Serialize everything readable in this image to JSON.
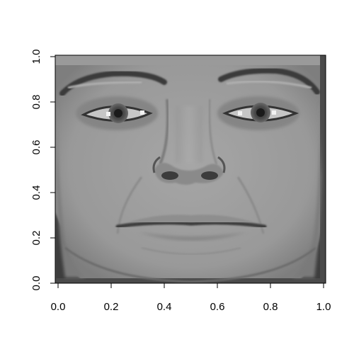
{
  "chart_data": {
    "type": "heatmap",
    "title": "",
    "xlabel": "",
    "ylabel": "",
    "xlim": [
      0,
      1
    ],
    "ylim": [
      0,
      1
    ],
    "grid": false,
    "colormap": "grayscale",
    "x_ticks": [
      "0.0",
      "0.2",
      "0.4",
      "0.6",
      "0.8",
      "1.0"
    ],
    "y_ticks": [
      "0.0",
      "0.2",
      "0.4",
      "0.6",
      "0.8",
      "1.0"
    ],
    "x_tick_values": [
      0.0,
      0.2,
      0.4,
      0.6,
      0.8,
      1.0
    ],
    "y_tick_values": [
      0.0,
      0.2,
      0.4,
      0.6,
      0.8,
      1.0
    ],
    "image_content": "grayscale face image",
    "colors": {
      "face_base": "#9c9c9c",
      "background": "#ffffff",
      "dark_border": "#4a4a4a"
    }
  }
}
